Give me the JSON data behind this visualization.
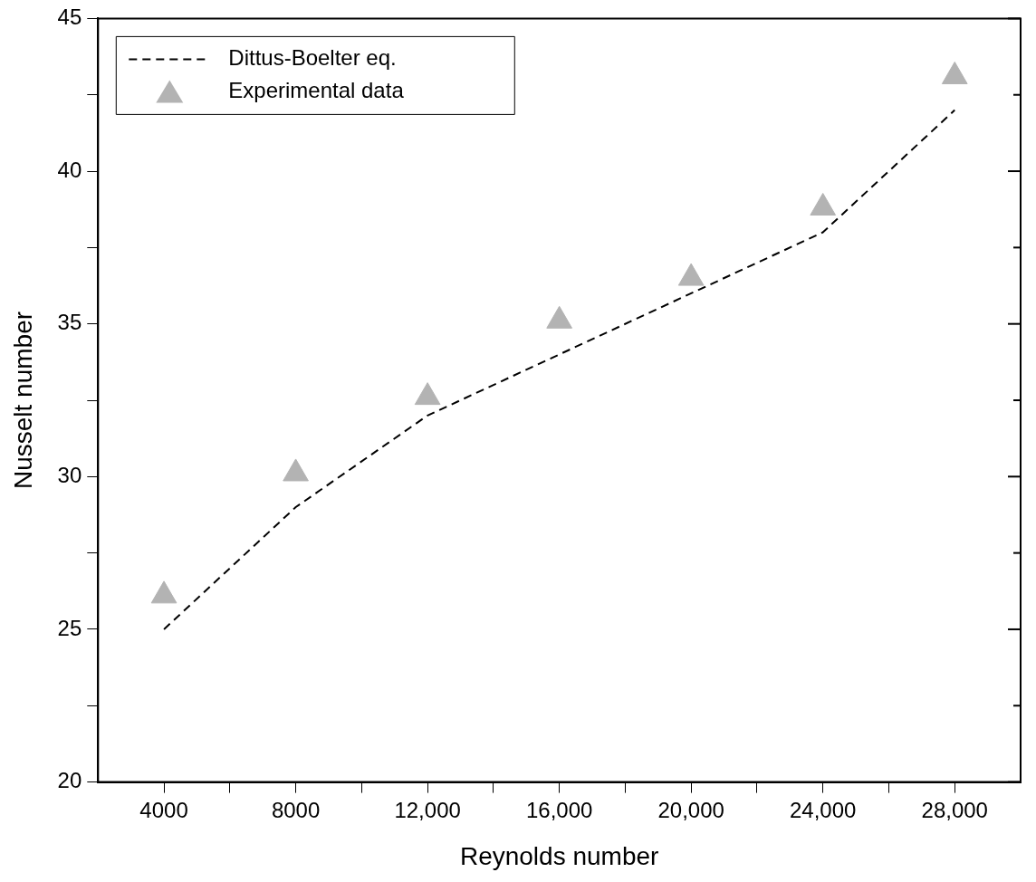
{
  "chart_data": {
    "type": "scatter",
    "xlabel": "Reynolds number",
    "ylabel": "Nusselt number",
    "xlim": [
      2000,
      30000
    ],
    "xticks": [
      4000,
      {
        "value": 6000,
        "label": null
      },
      8000,
      {
        "value": 10000,
        "label": null
      },
      {
        "value": 12000,
        "label": "12,000"
      },
      {
        "value": 14000,
        "label": null
      },
      {
        "value": 16000,
        "label": "16,000"
      },
      {
        "value": 18000,
        "label": null
      },
      {
        "value": 20000,
        "label": "20,000"
      },
      {
        "value": 22000,
        "label": null
      },
      {
        "value": 24000,
        "label": "24,000"
      },
      {
        "value": 26000,
        "label": null
      },
      {
        "value": 28000,
        "label": "28,000"
      }
    ],
    "ylim": [
      20,
      45
    ],
    "yticks": [
      20,
      {
        "value": 22.5,
        "label": null
      },
      25,
      {
        "value": 27.5,
        "label": null
      },
      30,
      {
        "value": 32.5,
        "label": null
      },
      35,
      {
        "value": 37.5,
        "label": null
      },
      40,
      {
        "value": 42.5,
        "label": null
      },
      45
    ],
    "grid": false,
    "legend": "top left",
    "series": [
      {
        "name": "Dittus-Boelter eq.",
        "type": "line",
        "line_style": "dashed",
        "marker": "none",
        "color": "#000000",
        "x": [
          4000,
          8000,
          12000,
          16000,
          20000,
          24000,
          28000
        ],
        "values": [
          25,
          29,
          32,
          34,
          36,
          38,
          42
        ]
      },
      {
        "name": "Experimental data",
        "marker": "triangle",
        "color": "#b3b3b3",
        "x": [
          4000,
          8000,
          12000,
          16000,
          20000,
          24000,
          28000
        ],
        "values": [
          26.1,
          30.1,
          32.6,
          35.1,
          36.5,
          38.8,
          43.1
        ]
      }
    ]
  }
}
